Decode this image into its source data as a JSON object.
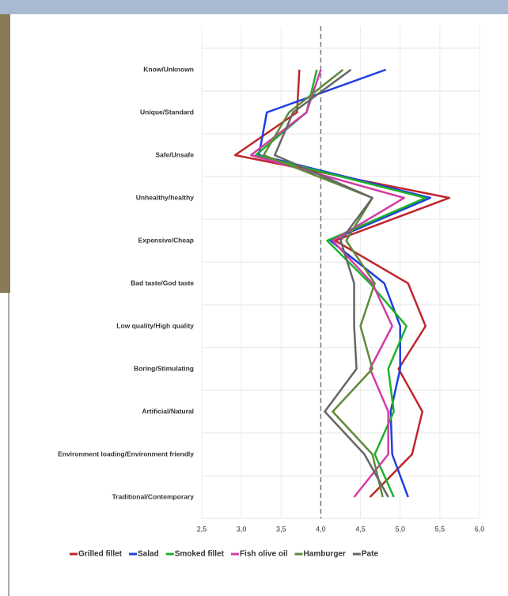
{
  "chart_data": {
    "type": "line",
    "orientation": "horizontal",
    "categories": [
      "Know/Unknown",
      "Unique/Standard",
      "Safe/Unsafe",
      "Unhealthy/healthy",
      "Expensive/Cheap",
      "Bad taste/God taste",
      "Low quality/High quality",
      "Boring/Stimulating",
      "Artificial/Natural",
      "Environment loading/Environment friendly",
      "Traditional/Contemporary"
    ],
    "series": [
      {
        "name": "Grilled fillet",
        "color": "#c0262d",
        "values": [
          3.73,
          3.7,
          2.92,
          5.62,
          4.18,
          5.1,
          5.32,
          4.98,
          5.28,
          5.15,
          4.62
        ]
      },
      {
        "name": "Salad",
        "color": "#1f3fe0",
        "values": [
          4.82,
          3.32,
          3.22,
          5.38,
          4.12,
          4.8,
          5.0,
          5.0,
          4.88,
          4.9,
          5.1
        ]
      },
      {
        "name": "Smoked fillet",
        "color": "#1fb02a",
        "values": [
          3.95,
          3.82,
          3.18,
          5.32,
          4.08,
          4.62,
          5.08,
          4.85,
          4.92,
          4.68,
          4.92
        ]
      },
      {
        "name": "Fish olive oil",
        "color": "#d23ca8",
        "values": [
          4.0,
          3.82,
          3.12,
          5.05,
          4.15,
          4.65,
          4.9,
          4.62,
          4.85,
          4.85,
          4.42
        ]
      },
      {
        "name": "Hamburger",
        "color": "#5f8a3a",
        "values": [
          4.28,
          3.6,
          3.28,
          4.65,
          4.32,
          4.68,
          4.5,
          4.65,
          4.15,
          4.65,
          4.78
        ]
      },
      {
        "name": "Pate",
        "color": "#666666",
        "values": [
          4.38,
          3.65,
          3.42,
          4.65,
          4.25,
          4.42,
          4.42,
          4.45,
          4.05,
          4.55,
          4.85
        ]
      }
    ],
    "xlim": [
      2.5,
      6.0
    ],
    "xticks": [
      {
        "value": 2.5,
        "label": "2,5"
      },
      {
        "value": 3.0,
        "label": "3,0"
      },
      {
        "value": 3.5,
        "label": "3,5"
      },
      {
        "value": 4.0,
        "label": "4,0"
      },
      {
        "value": 4.5,
        "label": "4,5"
      },
      {
        "value": 5.0,
        "label": "5,0"
      },
      {
        "value": 5.5,
        "label": "5,5"
      },
      {
        "value": 6.0,
        "label": "6,0"
      }
    ],
    "reference_line": 4.0,
    "legend": "bottom"
  }
}
